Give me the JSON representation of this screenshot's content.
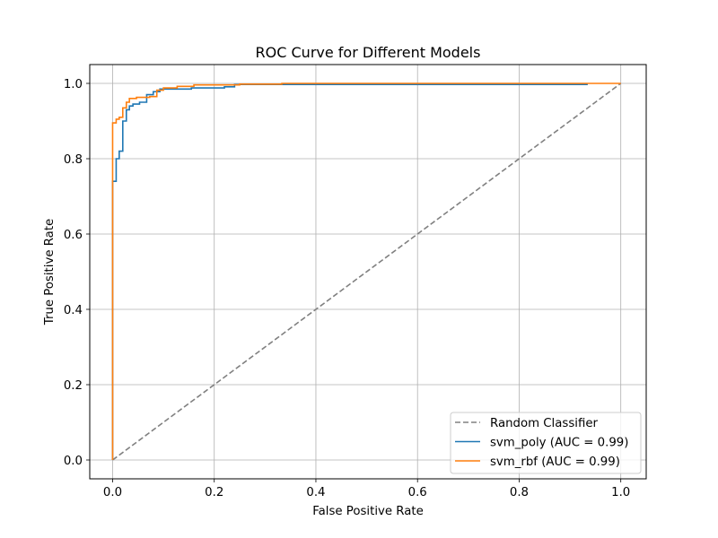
{
  "chart_data": {
    "type": "line",
    "title": "ROC Curve for Different Models",
    "xlabel": "False Positive Rate",
    "ylabel": "True Positive Rate",
    "xlim": [
      -0.045,
      1.05
    ],
    "ylim": [
      -0.05,
      1.05
    ],
    "xticks": [
      "0.0",
      "0.2",
      "0.4",
      "0.6",
      "0.8",
      "1.0"
    ],
    "yticks": [
      "0.0",
      "0.2",
      "0.4",
      "0.6",
      "0.8",
      "1.0"
    ],
    "grid": true,
    "legend_position": "lower right",
    "series": [
      {
        "name": "Random Classifier",
        "color": "#808080",
        "dash": "dashed",
        "x": [
          0,
          1
        ],
        "y": [
          0,
          1
        ]
      },
      {
        "name": "svm_poly (AUC = 0.99)",
        "color": "#1f77b4",
        "dash": "solid",
        "x": [
          0,
          0,
          0.007,
          0.007,
          0.013,
          0.013,
          0.02,
          0.02,
          0.027,
          0.027,
          0.033,
          0.033,
          0.04,
          0.04,
          0.053,
          0.053,
          0.067,
          0.067,
          0.08,
          0.08,
          0.093,
          0.093,
          0.155,
          0.155,
          0.22,
          0.22,
          0.24,
          0.24,
          0.935
        ],
        "y": [
          0,
          0.74,
          0.74,
          0.8,
          0.8,
          0.82,
          0.82,
          0.9,
          0.9,
          0.93,
          0.93,
          0.94,
          0.94,
          0.945,
          0.945,
          0.95,
          0.95,
          0.97,
          0.97,
          0.978,
          0.978,
          0.985,
          0.985,
          0.988,
          0.988,
          0.991,
          0.991,
          0.997,
          0.997
        ]
      },
      {
        "name": "svm_rbf (AUC = 0.99)",
        "color": "#ff7f0e",
        "dash": "solid",
        "x": [
          0,
          0,
          0.007,
          0.007,
          0.013,
          0.013,
          0.02,
          0.02,
          0.027,
          0.027,
          0.033,
          0.033,
          0.047,
          0.047,
          0.073,
          0.073,
          0.087,
          0.087,
          0.1,
          0.1,
          0.127,
          0.127,
          0.16,
          0.16,
          0.25,
          0.25,
          0.333,
          0.333,
          1.0
        ],
        "y": [
          0,
          0.895,
          0.895,
          0.905,
          0.905,
          0.91,
          0.91,
          0.935,
          0.935,
          0.95,
          0.95,
          0.96,
          0.96,
          0.963,
          0.963,
          0.965,
          0.965,
          0.982,
          0.982,
          0.988,
          0.988,
          0.992,
          0.992,
          0.996,
          0.996,
          0.998,
          0.998,
          1.0,
          1.0
        ]
      }
    ]
  }
}
